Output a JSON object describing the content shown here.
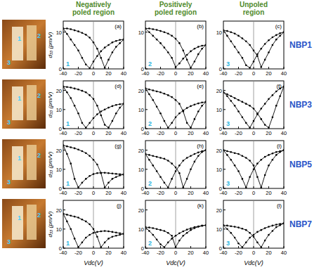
{
  "figure": {
    "column_titles": [
      [
        "Negatively",
        "poled region"
      ],
      [
        "Positively",
        "poled region"
      ],
      [
        "Unpoled",
        "region"
      ]
    ],
    "row_labels": [
      "NBP1",
      "NBP3",
      "NBP5",
      "NBP7"
    ],
    "image_labels": [
      [
        "1",
        "2",
        "3"
      ],
      [
        "1",
        "2",
        "3"
      ],
      [
        "1",
        "2",
        "3"
      ],
      [
        "1",
        "2",
        "3"
      ]
    ]
  },
  "chart_data": [
    {
      "type": "line",
      "title": "(a)",
      "annotations": [
        "1"
      ],
      "ylabel": "d₃₃ (pm/V)",
      "x": [
        -40,
        -35,
        -30,
        -25,
        -20,
        -15,
        -10,
        -5,
        0,
        5,
        10,
        15,
        20,
        25,
        30,
        35,
        40
      ],
      "xlim": [
        -40,
        40
      ],
      "xticks": [
        -40,
        -20,
        0,
        20,
        40
      ],
      "ylim": [
        0,
        13
      ],
      "yticks": [
        0,
        10
      ],
      "marker": "circle",
      "line_style": "solid",
      "series": [
        {
          "color": "#000000",
          "values": [
            11,
            11,
            10.8,
            10.5,
            10.2,
            9.8,
            9.3,
            8.5,
            7.2,
            5.5,
            3,
            0.3,
            2.5,
            4.5,
            6,
            7,
            8
          ]
        },
        {
          "color": "#000000",
          "values": [
            11,
            9.5,
            8,
            6.5,
            5,
            3,
            1.2,
            0.2,
            2,
            3.5,
            4.8,
            5.8,
            6.5,
            7.2,
            7.6,
            7.9,
            8
          ]
        }
      ]
    },
    {
      "type": "line",
      "title": "(b)",
      "annotations": [
        "2"
      ],
      "x": [
        -40,
        -35,
        -30,
        -25,
        -20,
        -15,
        -10,
        -5,
        0,
        5,
        10,
        15,
        20,
        25,
        30,
        35,
        40
      ],
      "xlim": [
        -40,
        40
      ],
      "xticks": [
        -40,
        -20,
        0,
        20,
        40
      ],
      "ylim": [
        0,
        13
      ],
      "yticks": [
        0,
        10
      ],
      "marker": "circle",
      "line_style": "solid",
      "series": [
        {
          "color": "#000000",
          "values": [
            11,
            11,
            10.8,
            10.6,
            10.3,
            10,
            9.6,
            9,
            8.2,
            7,
            5,
            2.5,
            0.3,
            2,
            4,
            5.5,
            6.5
          ]
        },
        {
          "color": "#000000",
          "values": [
            11,
            10,
            9,
            8,
            7,
            5.8,
            4.5,
            3,
            0.5,
            1.5,
            2.8,
            3.8,
            4.8,
            5.5,
            6,
            6.3,
            6.5
          ]
        }
      ]
    },
    {
      "type": "line",
      "title": "(c)",
      "annotations": [
        "3"
      ],
      "x": [
        -40,
        -35,
        -30,
        -25,
        -20,
        -15,
        -10,
        -5,
        0,
        5,
        10,
        15,
        20,
        25,
        30,
        35,
        40
      ],
      "xlim": [
        -40,
        40
      ],
      "xticks": [
        -40,
        -20,
        0,
        20,
        40
      ],
      "ylim": [
        0,
        13
      ],
      "yticks": [
        0,
        10
      ],
      "marker": "circle",
      "line_style": "solid",
      "series": [
        {
          "color": "#000000",
          "values": [
            10.5,
            10.3,
            10,
            9.6,
            9,
            8.3,
            7.5,
            6.5,
            5,
            3.5,
            0.5,
            2.5,
            4.5,
            6.5,
            8,
            9,
            10
          ]
        },
        {
          "color": "#000000",
          "values": [
            10.5,
            9,
            7.5,
            6,
            4.5,
            3,
            1,
            0.3,
            2,
            4,
            5.5,
            6.8,
            7.8,
            8.6,
            9.2,
            9.7,
            10
          ]
        }
      ]
    },
    {
      "type": "line",
      "title": "(d)",
      "annotations": [
        "1"
      ],
      "ylabel": "d₃₃ (pm/V)",
      "x": [
        -40,
        -35,
        -30,
        -25,
        -20,
        -15,
        -10,
        -5,
        0,
        5,
        10,
        15,
        20,
        25,
        30,
        35,
        40
      ],
      "xlim": [
        -40,
        40
      ],
      "xticks": [
        -40,
        -20,
        0,
        20,
        40
      ],
      "ylim": [
        0,
        25
      ],
      "yticks": [
        0,
        10,
        20
      ],
      "marker": "circle",
      "line_style": "solid",
      "series": [
        {
          "color": "#000000",
          "values": [
            22,
            21.8,
            21.5,
            21,
            20.5,
            19.8,
            19,
            17.5,
            15.5,
            12,
            7,
            2,
            0.5,
            4,
            8,
            11,
            13
          ]
        },
        {
          "color": "#000000",
          "values": [
            22,
            19,
            16,
            12,
            8,
            3,
            0.5,
            3,
            5.5,
            7.5,
            9,
            10,
            11,
            11.8,
            12.4,
            12.8,
            13
          ]
        }
      ]
    },
    {
      "type": "line",
      "title": "(e)",
      "annotations": [
        "2"
      ],
      "x": [
        -40,
        -35,
        -30,
        -25,
        -20,
        -15,
        -10,
        -5,
        0,
        5,
        10,
        15,
        20,
        25,
        30,
        35,
        40
      ],
      "xlim": [
        -40,
        40
      ],
      "xticks": [
        -40,
        -20,
        0,
        20,
        40
      ],
      "ylim": [
        0,
        25
      ],
      "yticks": [
        0,
        10,
        20
      ],
      "marker": "circle",
      "line_style": "solid",
      "series": [
        {
          "color": "#000000",
          "values": [
            21,
            20.5,
            20,
            19.5,
            19,
            18.3,
            17.5,
            16.5,
            15,
            13,
            9,
            3,
            0.5,
            5,
            9,
            12,
            14
          ]
        },
        {
          "color": "#000000",
          "values": [
            21,
            18,
            15,
            11.5,
            8,
            4,
            0.5,
            3,
            6,
            8,
            9.5,
            10.8,
            11.8,
            12.6,
            13.2,
            13.7,
            14
          ]
        }
      ]
    },
    {
      "type": "line",
      "title": "(f)",
      "annotations": [
        "3"
      ],
      "x": [
        -40,
        -35,
        -30,
        -25,
        -20,
        -15,
        -10,
        -5,
        0,
        5,
        10,
        15,
        20,
        25,
        30,
        35,
        40
      ],
      "xlim": [
        -40,
        40
      ],
      "xticks": [
        -40,
        -20,
        0,
        20,
        40
      ],
      "ylim": [
        0,
        25
      ],
      "yticks": [
        0,
        10,
        20
      ],
      "marker": "circle",
      "line_style": "solid",
      "series": [
        {
          "color": "#000000",
          "values": [
            19,
            18,
            17,
            16,
            15,
            14,
            13,
            12,
            10.5,
            8,
            5,
            2,
            0.5,
            6,
            12,
            17,
            22
          ]
        },
        {
          "color": "#000000",
          "values": [
            19,
            17,
            14.5,
            12,
            9,
            6,
            3,
            0.5,
            4,
            7.5,
            10.5,
            13,
            15.5,
            17.5,
            19.5,
            21,
            22
          ]
        }
      ]
    },
    {
      "type": "line",
      "title": "(g)",
      "annotations": [
        "1"
      ],
      "ylabel": "d₃₃ (pm/V)",
      "x": [
        -40,
        -35,
        -30,
        -25,
        -20,
        -15,
        -10,
        -5,
        0,
        5,
        10,
        15,
        20,
        25,
        30,
        35,
        40
      ],
      "xlim": [
        -40,
        40
      ],
      "xticks": [
        -40,
        -20,
        0,
        20,
        40
      ],
      "ylim": [
        0,
        25
      ],
      "yticks": [
        0,
        10,
        20
      ],
      "marker": "circle",
      "line_style": "solid",
      "series": [
        {
          "color": "#000000",
          "values": [
            22.5,
            22,
            21.5,
            21,
            20.3,
            19.5,
            18.5,
            17,
            15,
            12.5,
            8,
            0.5,
            3,
            5,
            6,
            6.8,
            7.3
          ]
        },
        {
          "color": "#000000",
          "values": [
            22.5,
            18,
            13,
            5,
            0.5,
            3,
            5,
            6.5,
            7.5,
            8,
            8.2,
            8.2,
            8,
            7.8,
            7.6,
            7.4,
            7.3
          ]
        }
      ]
    },
    {
      "type": "line",
      "title": "(h)",
      "annotations": [
        "2"
      ],
      "x": [
        -40,
        -35,
        -30,
        -25,
        -20,
        -15,
        -10,
        -5,
        0,
        5,
        10,
        15,
        20,
        25,
        30,
        35,
        40
      ],
      "xlim": [
        -40,
        40
      ],
      "xticks": [
        -40,
        -20,
        0,
        20,
        40
      ],
      "ylim": [
        0,
        25
      ],
      "yticks": [
        0,
        10,
        20
      ],
      "marker": "circle",
      "line_style": "solid",
      "series": [
        {
          "color": "#000000",
          "values": [
            18,
            17.5,
            17,
            16.5,
            16,
            15.5,
            14.5,
            13,
            11,
            8,
            0.5,
            5,
            10,
            14,
            17,
            19,
            20
          ]
        },
        {
          "color": "#000000",
          "values": [
            18,
            15,
            12,
            9,
            6,
            3,
            0.5,
            5,
            9,
            12,
            14.5,
            16,
            17,
            18,
            18.8,
            19.5,
            20
          ]
        }
      ]
    },
    {
      "type": "line",
      "title": "(i)",
      "annotations": [
        "3"
      ],
      "x": [
        -40,
        -35,
        -30,
        -25,
        -20,
        -15,
        -10,
        -5,
        0,
        5,
        10,
        15,
        20,
        25,
        30,
        35,
        40
      ],
      "xlim": [
        -40,
        40
      ],
      "xticks": [
        -40,
        -20,
        0,
        20,
        40
      ],
      "ylim": [
        0,
        25
      ],
      "yticks": [
        0,
        10,
        20
      ],
      "marker": "circle",
      "line_style": "solid",
      "series": [
        {
          "color": "#000000",
          "values": [
            20,
            19.5,
            19,
            18.5,
            18,
            17,
            16,
            14.5,
            12,
            6,
            0.5,
            7,
            12,
            15,
            17.5,
            19,
            20
          ]
        },
        {
          "color": "#000000",
          "values": [
            20,
            17.5,
            15,
            12,
            9,
            5,
            0.5,
            6,
            10,
            13,
            15,
            16.5,
            17.5,
            18.3,
            19,
            19.5,
            20
          ]
        }
      ]
    },
    {
      "type": "line",
      "title": "(j)",
      "annotations": [
        "1"
      ],
      "ylabel": "d₃₃ (pm/V)",
      "xlabel": "Vdc(V)",
      "x": [
        -40,
        -35,
        -30,
        -25,
        -20,
        -15,
        -10,
        -5,
        0,
        5,
        10,
        15,
        20,
        25,
        30,
        35,
        40
      ],
      "xlim": [
        -40,
        40
      ],
      "xticks": [
        -40,
        -20,
        0,
        20,
        40
      ],
      "ylim": [
        0,
        25
      ],
      "yticks": [
        0,
        10,
        20
      ],
      "marker": "circle",
      "line_style": "solid",
      "series": [
        {
          "color": "#000000",
          "values": [
            18,
            17.5,
            17,
            16.5,
            16,
            15,
            14,
            12.5,
            10,
            6,
            0.5,
            3,
            5,
            6,
            6.5,
            7,
            7.5
          ]
        },
        {
          "color": "#000000",
          "values": [
            18,
            14,
            10,
            5,
            0.5,
            3,
            5.5,
            7,
            8,
            8.5,
            8.8,
            9,
            8.8,
            8.5,
            8.2,
            7.8,
            7.5
          ]
        }
      ]
    },
    {
      "type": "line",
      "title": "(k)",
      "annotations": [
        "2"
      ],
      "xlabel": "Vdc(V)",
      "x": [
        -40,
        -35,
        -30,
        -25,
        -20,
        -15,
        -10,
        -5,
        0,
        5,
        10,
        15,
        20,
        25,
        30,
        35,
        40
      ],
      "xlim": [
        -40,
        40
      ],
      "xticks": [
        -40,
        -20,
        0,
        20,
        40
      ],
      "ylim": [
        0,
        25
      ],
      "yticks": [
        0,
        10,
        20
      ],
      "marker": "circle",
      "line_style": "solid",
      "series": [
        {
          "color": "#000000",
          "values": [
            11,
            10.8,
            10.5,
            10,
            9.5,
            9,
            8,
            6.5,
            0.5,
            4,
            6.5,
            8,
            9.5,
            10.5,
            11.2,
            11.7,
            12
          ]
        },
        {
          "color": "#000000",
          "values": [
            11,
            9,
            7,
            4.5,
            2,
            0.5,
            3,
            5,
            6.5,
            7.8,
            8.8,
            9.7,
            10.4,
            11,
            11.4,
            11.8,
            12
          ]
        }
      ]
    },
    {
      "type": "line",
      "title": "(l)",
      "annotations": [
        "3"
      ],
      "xlabel": "Vdc(V)",
      "x": [
        -40,
        -35,
        -30,
        -25,
        -20,
        -15,
        -10,
        -5,
        0,
        5,
        10,
        15,
        20,
        25,
        30,
        35,
        40
      ],
      "xlim": [
        -40,
        40
      ],
      "xticks": [
        -40,
        -20,
        0,
        20,
        40
      ],
      "ylim": [
        0,
        25
      ],
      "yticks": [
        0,
        10,
        20
      ],
      "marker": "circle",
      "line_style": "solid",
      "series": [
        {
          "color": "#000000",
          "values": [
            12,
            11.8,
            11.5,
            11.2,
            10.8,
            10.2,
            9.5,
            8,
            6,
            3,
            0.5,
            4,
            7,
            9,
            11,
            12,
            13
          ]
        },
        {
          "color": "#000000",
          "values": [
            12,
            10,
            8,
            5.5,
            2.5,
            0.5,
            3,
            5.5,
            7,
            8.5,
            9.5,
            10.5,
            11.2,
            11.8,
            12.3,
            12.7,
            13
          ]
        }
      ]
    }
  ]
}
